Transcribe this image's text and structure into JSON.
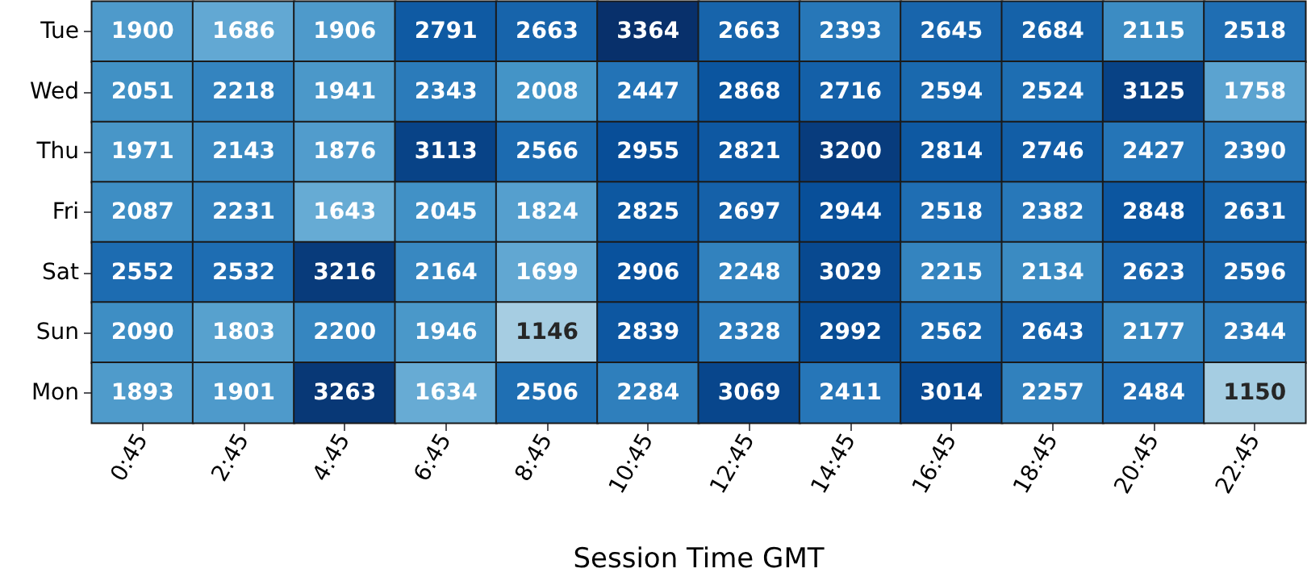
{
  "chart_data": {
    "type": "heatmap",
    "xlabel": "Session Time GMT",
    "categories": [
      "0:45",
      "2:45",
      "4:45",
      "6:45",
      "8:45",
      "10:45",
      "12:45",
      "14:45",
      "16:45",
      "18:45",
      "20:45",
      "22:45"
    ],
    "y_categories": [
      "Tue",
      "Wed",
      "Thu",
      "Fri",
      "Sat",
      "Sun",
      "Mon"
    ],
    "cells": [
      [
        1900,
        1686,
        1906,
        2791,
        2663,
        3364,
        2663,
        2393,
        2645,
        2684,
        2115,
        2518
      ],
      [
        2051,
        2218,
        1941,
        2343,
        2008,
        2447,
        2868,
        2716,
        2594,
        2524,
        3125,
        1758
      ],
      [
        1971,
        2143,
        1876,
        3113,
        2566,
        2955,
        2821,
        3200,
        2814,
        2746,
        2427,
        2390
      ],
      [
        2087,
        2231,
        1643,
        2045,
        1824,
        2825,
        2697,
        2944,
        2518,
        2382,
        2848,
        2631
      ],
      [
        2552,
        2532,
        3216,
        2164,
        1699,
        2906,
        2248,
        3029,
        2215,
        2134,
        2623,
        2596
      ],
      [
        2090,
        1803,
        2200,
        1946,
        1146,
        2839,
        2328,
        2992,
        2562,
        2643,
        2177,
        2344
      ],
      [
        1893,
        1901,
        3263,
        1634,
        2506,
        2284,
        3069,
        2411,
        3014,
        2257,
        2484,
        1150
      ]
    ],
    "data_labels": true
  }
}
